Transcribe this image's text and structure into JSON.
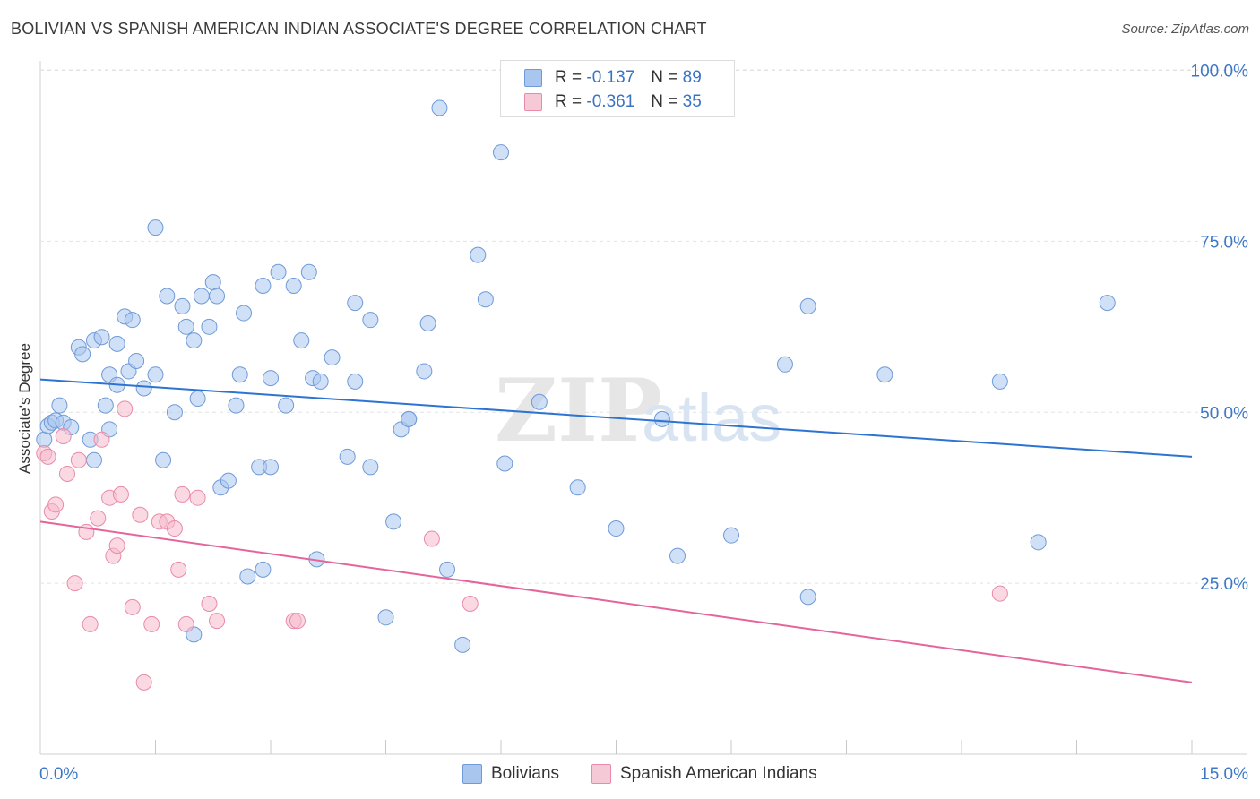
{
  "title": "BOLIVIAN VS SPANISH AMERICAN INDIAN ASSOCIATE'S DEGREE CORRELATION CHART",
  "source": "Source: ZipAtlas.com",
  "watermark": {
    "zip": "ZIP",
    "atlas": "atlas"
  },
  "legend": {
    "r_label": "R =",
    "n_label": "N =",
    "items": [
      {
        "r": "-0.137",
        "n": "89"
      },
      {
        "r": "-0.361",
        "n": "35"
      }
    ]
  },
  "colors": {
    "blue_fill": "#a9c6ef",
    "blue_stroke": "#6f9ad8",
    "blue_line": "#2d74d0",
    "pink_fill": "#f6b9cc",
    "pink_stroke": "#e98aaa",
    "pink_line": "#e4659a",
    "tick_label": "#3d78c8",
    "grid": "#e3e3e3"
  },
  "chart_data": {
    "type": "scatter",
    "title": "BOLIVIAN VS SPANISH AMERICAN INDIAN ASSOCIATE'S DEGREE CORRELATION CHART",
    "xlabel": "",
    "ylabel": "Associate's Degree",
    "xlim": [
      0,
      15
    ],
    "ylim": [
      0,
      105
    ],
    "x_tick_labels": [
      "0.0%",
      "15.0%"
    ],
    "y_tick_labels": [
      "25.0%",
      "50.0%",
      "75.0%",
      "100.0%"
    ],
    "y_ticks": [
      25,
      50,
      75,
      100
    ],
    "grid": "horizontal dashed",
    "legend_position": "top-center and bottom",
    "series": [
      {
        "name": "Bolivians",
        "color": "#a9c6ef",
        "trend": {
          "x": [
            0,
            15
          ],
          "y": [
            54.8,
            43.5
          ]
        },
        "points": [
          [
            0.05,
            46
          ],
          [
            0.1,
            48
          ],
          [
            0.15,
            48.5
          ],
          [
            0.2,
            48.8
          ],
          [
            0.25,
            51
          ],
          [
            0.3,
            48.5
          ],
          [
            0.4,
            47.8
          ],
          [
            0.5,
            59.5
          ],
          [
            0.55,
            58.5
          ],
          [
            0.65,
            46
          ],
          [
            0.7,
            60.5
          ],
          [
            0.8,
            61
          ],
          [
            0.85,
            51
          ],
          [
            0.9,
            55.5
          ],
          [
            1.0,
            54
          ],
          [
            1.1,
            64
          ],
          [
            1.15,
            56
          ],
          [
            1.2,
            63.5
          ],
          [
            1.25,
            57.5
          ],
          [
            1.35,
            53.5
          ],
          [
            1.5,
            55.5
          ],
          [
            1.6,
            43
          ],
          [
            1.65,
            67
          ],
          [
            1.75,
            50
          ],
          [
            1.85,
            65.5
          ],
          [
            1.9,
            62.5
          ],
          [
            2.0,
            60.5
          ],
          [
            2.05,
            52
          ],
          [
            2.1,
            67
          ],
          [
            2.2,
            62.5
          ],
          [
            2.25,
            69
          ],
          [
            2.3,
            67
          ],
          [
            2.35,
            39
          ],
          [
            2.45,
            40
          ],
          [
            2.55,
            51
          ],
          [
            2.6,
            55.5
          ],
          [
            2.65,
            64.5
          ],
          [
            2.7,
            26
          ],
          [
            2.85,
            42
          ],
          [
            2.9,
            68.5
          ],
          [
            3.0,
            55
          ],
          [
            3.1,
            70.5
          ],
          [
            3.2,
            51
          ],
          [
            3.3,
            68.5
          ],
          [
            3.4,
            60.5
          ],
          [
            3.5,
            70.5
          ],
          [
            3.55,
            55
          ],
          [
            3.6,
            28.5
          ],
          [
            3.65,
            54.5
          ],
          [
            3.8,
            58
          ],
          [
            4.0,
            43.5
          ],
          [
            4.1,
            54.5
          ],
          [
            4.1,
            66
          ],
          [
            4.3,
            63.5
          ],
          [
            4.5,
            20
          ],
          [
            4.6,
            34
          ],
          [
            4.7,
            47.5
          ],
          [
            4.8,
            49
          ],
          [
            5.0,
            56
          ],
          [
            5.05,
            63
          ],
          [
            5.2,
            94.5
          ],
          [
            5.3,
            27
          ],
          [
            5.5,
            16
          ],
          [
            5.7,
            73
          ],
          [
            5.8,
            66.5
          ],
          [
            6.0,
            88
          ],
          [
            6.05,
            42.5
          ],
          [
            1.5,
            77
          ],
          [
            0.7,
            43
          ],
          [
            0.9,
            47.5
          ],
          [
            2.9,
            27
          ],
          [
            2.0,
            17.5
          ],
          [
            3.0,
            42
          ],
          [
            4.3,
            42
          ],
          [
            4.8,
            49
          ],
          [
            6.5,
            51.5
          ],
          [
            7.0,
            39
          ],
          [
            7.5,
            33
          ],
          [
            8.1,
            49
          ],
          [
            8.3,
            29
          ],
          [
            9.0,
            32
          ],
          [
            9.7,
            57
          ],
          [
            10.0,
            23
          ],
          [
            10.0,
            65.5
          ],
          [
            11.0,
            55.5
          ],
          [
            12.5,
            54.5
          ],
          [
            13.0,
            31
          ],
          [
            13.9,
            66
          ],
          [
            1.0,
            60
          ]
        ]
      },
      {
        "name": "Spanish American Indians",
        "color": "#f6b9cc",
        "trend": {
          "x": [
            0,
            15
          ],
          "y": [
            34.0,
            10.5
          ]
        },
        "points": [
          [
            0.05,
            44
          ],
          [
            0.1,
            43.5
          ],
          [
            0.15,
            35.5
          ],
          [
            0.2,
            36.5
          ],
          [
            0.3,
            46.5
          ],
          [
            0.35,
            41
          ],
          [
            0.45,
            25
          ],
          [
            0.5,
            43
          ],
          [
            0.6,
            32.5
          ],
          [
            0.65,
            19
          ],
          [
            0.75,
            34.5
          ],
          [
            0.8,
            46
          ],
          [
            0.9,
            37.5
          ],
          [
            0.95,
            29
          ],
          [
            1.0,
            30.5
          ],
          [
            1.05,
            38
          ],
          [
            1.1,
            50.5
          ],
          [
            1.2,
            21.5
          ],
          [
            1.3,
            35
          ],
          [
            1.35,
            10.5
          ],
          [
            1.45,
            19
          ],
          [
            1.55,
            34
          ],
          [
            1.65,
            34
          ],
          [
            1.75,
            33
          ],
          [
            1.8,
            27
          ],
          [
            1.85,
            38
          ],
          [
            1.9,
            19
          ],
          [
            2.05,
            37.5
          ],
          [
            2.2,
            22
          ],
          [
            2.3,
            19.5
          ],
          [
            3.3,
            19.5
          ],
          [
            3.35,
            19.5
          ],
          [
            5.1,
            31.5
          ],
          [
            5.6,
            22
          ],
          [
            12.5,
            23.5
          ]
        ]
      }
    ]
  },
  "bottom_legend": [
    "Bolivians",
    "Spanish American Indians"
  ]
}
